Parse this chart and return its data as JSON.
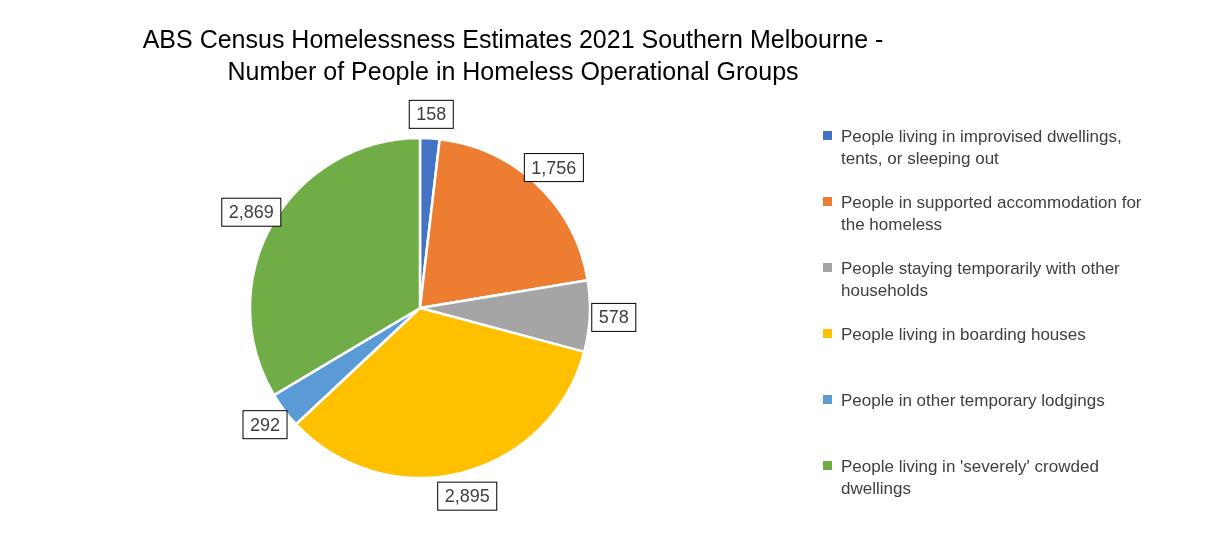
{
  "chart_data": {
    "type": "pie",
    "title": "ABS Census Homelessness Estimates 2021 Southern Melbourne - Number of People in Homeless Operational Groups",
    "categories": [
      "People living in improvised dwellings, tents, or sleeping out",
      "People in supported accommodation for the homeless",
      "People staying temporarily with other households",
      "People living in boarding houses",
      "People in other temporary lodgings",
      "People living in 'severely' crowded dwellings"
    ],
    "values": [
      158,
      1756,
      578,
      2895,
      292,
      2869
    ],
    "colors": [
      "#4472c4",
      "#ed7d31",
      "#a5a5a5",
      "#ffc000",
      "#5b9bd5",
      "#70ad47"
    ],
    "value_labels": [
      "158",
      "1,756",
      "578",
      "2,895",
      "292",
      "2,869"
    ],
    "legend": "right"
  }
}
